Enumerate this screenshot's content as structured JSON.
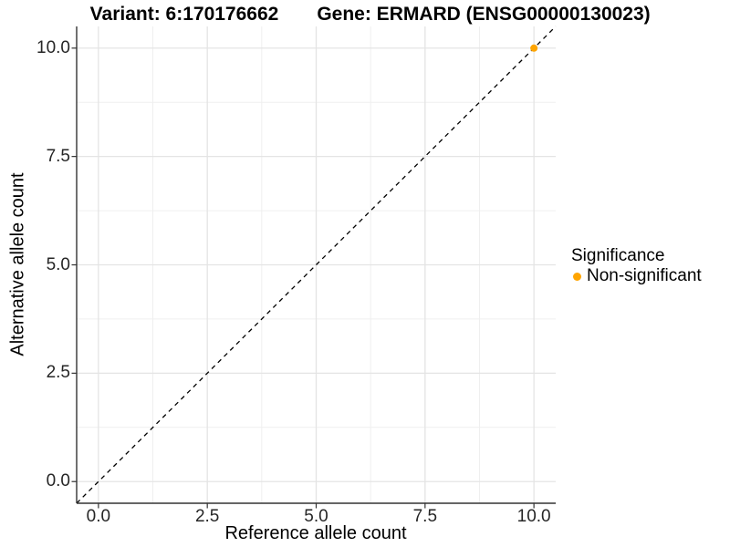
{
  "chart_data": {
    "type": "scatter",
    "title_left": "Variant: 6:170176662",
    "title_right": "Gene: ERMARD (ENSG00000130023)",
    "xlabel": "Reference allele count",
    "ylabel": "Alternative allele count",
    "xlim": [
      -0.5,
      10.5
    ],
    "ylim": [
      -0.5,
      10.5
    ],
    "xticks": {
      "values": [
        0,
        2.5,
        5,
        7.5,
        10
      ],
      "labels": [
        "0.0",
        "2.5",
        "5.0",
        "7.5",
        "10.0"
      ]
    },
    "yticks": {
      "values": [
        0,
        2.5,
        5,
        7.5,
        10
      ],
      "labels": [
        "0.0",
        "2.5",
        "5.0",
        "7.5",
        "10.0"
      ]
    },
    "minor_ticks": [
      1.25,
      3.75,
      6.25,
      8.75
    ],
    "grid": true,
    "reference_line": {
      "type": "identity",
      "slope": 1,
      "intercept": 0,
      "linetype": "dashed",
      "color": "#000000"
    },
    "series": [
      {
        "name": "Non-significant",
        "color": "#FFA500",
        "points": [
          {
            "x": 10,
            "y": 10
          }
        ]
      }
    ],
    "legend": {
      "title": "Significance",
      "position": "right",
      "items": [
        {
          "label": "Non-significant",
          "color": "#FFA500"
        }
      ]
    },
    "colors": {
      "background": "#ffffff",
      "axis": "#333333",
      "grid_major": "#e4e4e4",
      "grid_minor": "#efefef",
      "tick_text": "#262626",
      "title_text": "#000000"
    }
  }
}
